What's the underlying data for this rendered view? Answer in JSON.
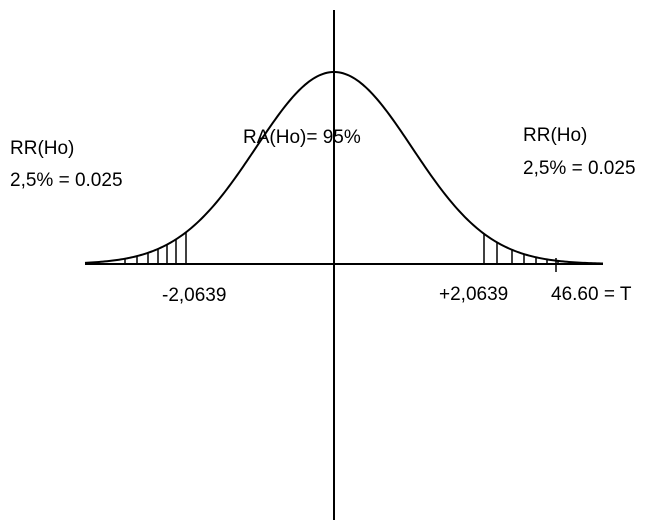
{
  "left_region": {
    "title": "RR(Ho)",
    "value": "2,5% = 0.025"
  },
  "center_region": {
    "label": "RA(Ho)= 95%"
  },
  "right_region": {
    "title": "RR(Ho)",
    "value": "2,5% = 0.025"
  },
  "axis_labels": {
    "left_critical": "-2,0639",
    "right_critical": "+2,0639",
    "statistic": "46.60 = T"
  },
  "colors": {
    "ink": "#000000",
    "background": "#ffffff"
  }
}
